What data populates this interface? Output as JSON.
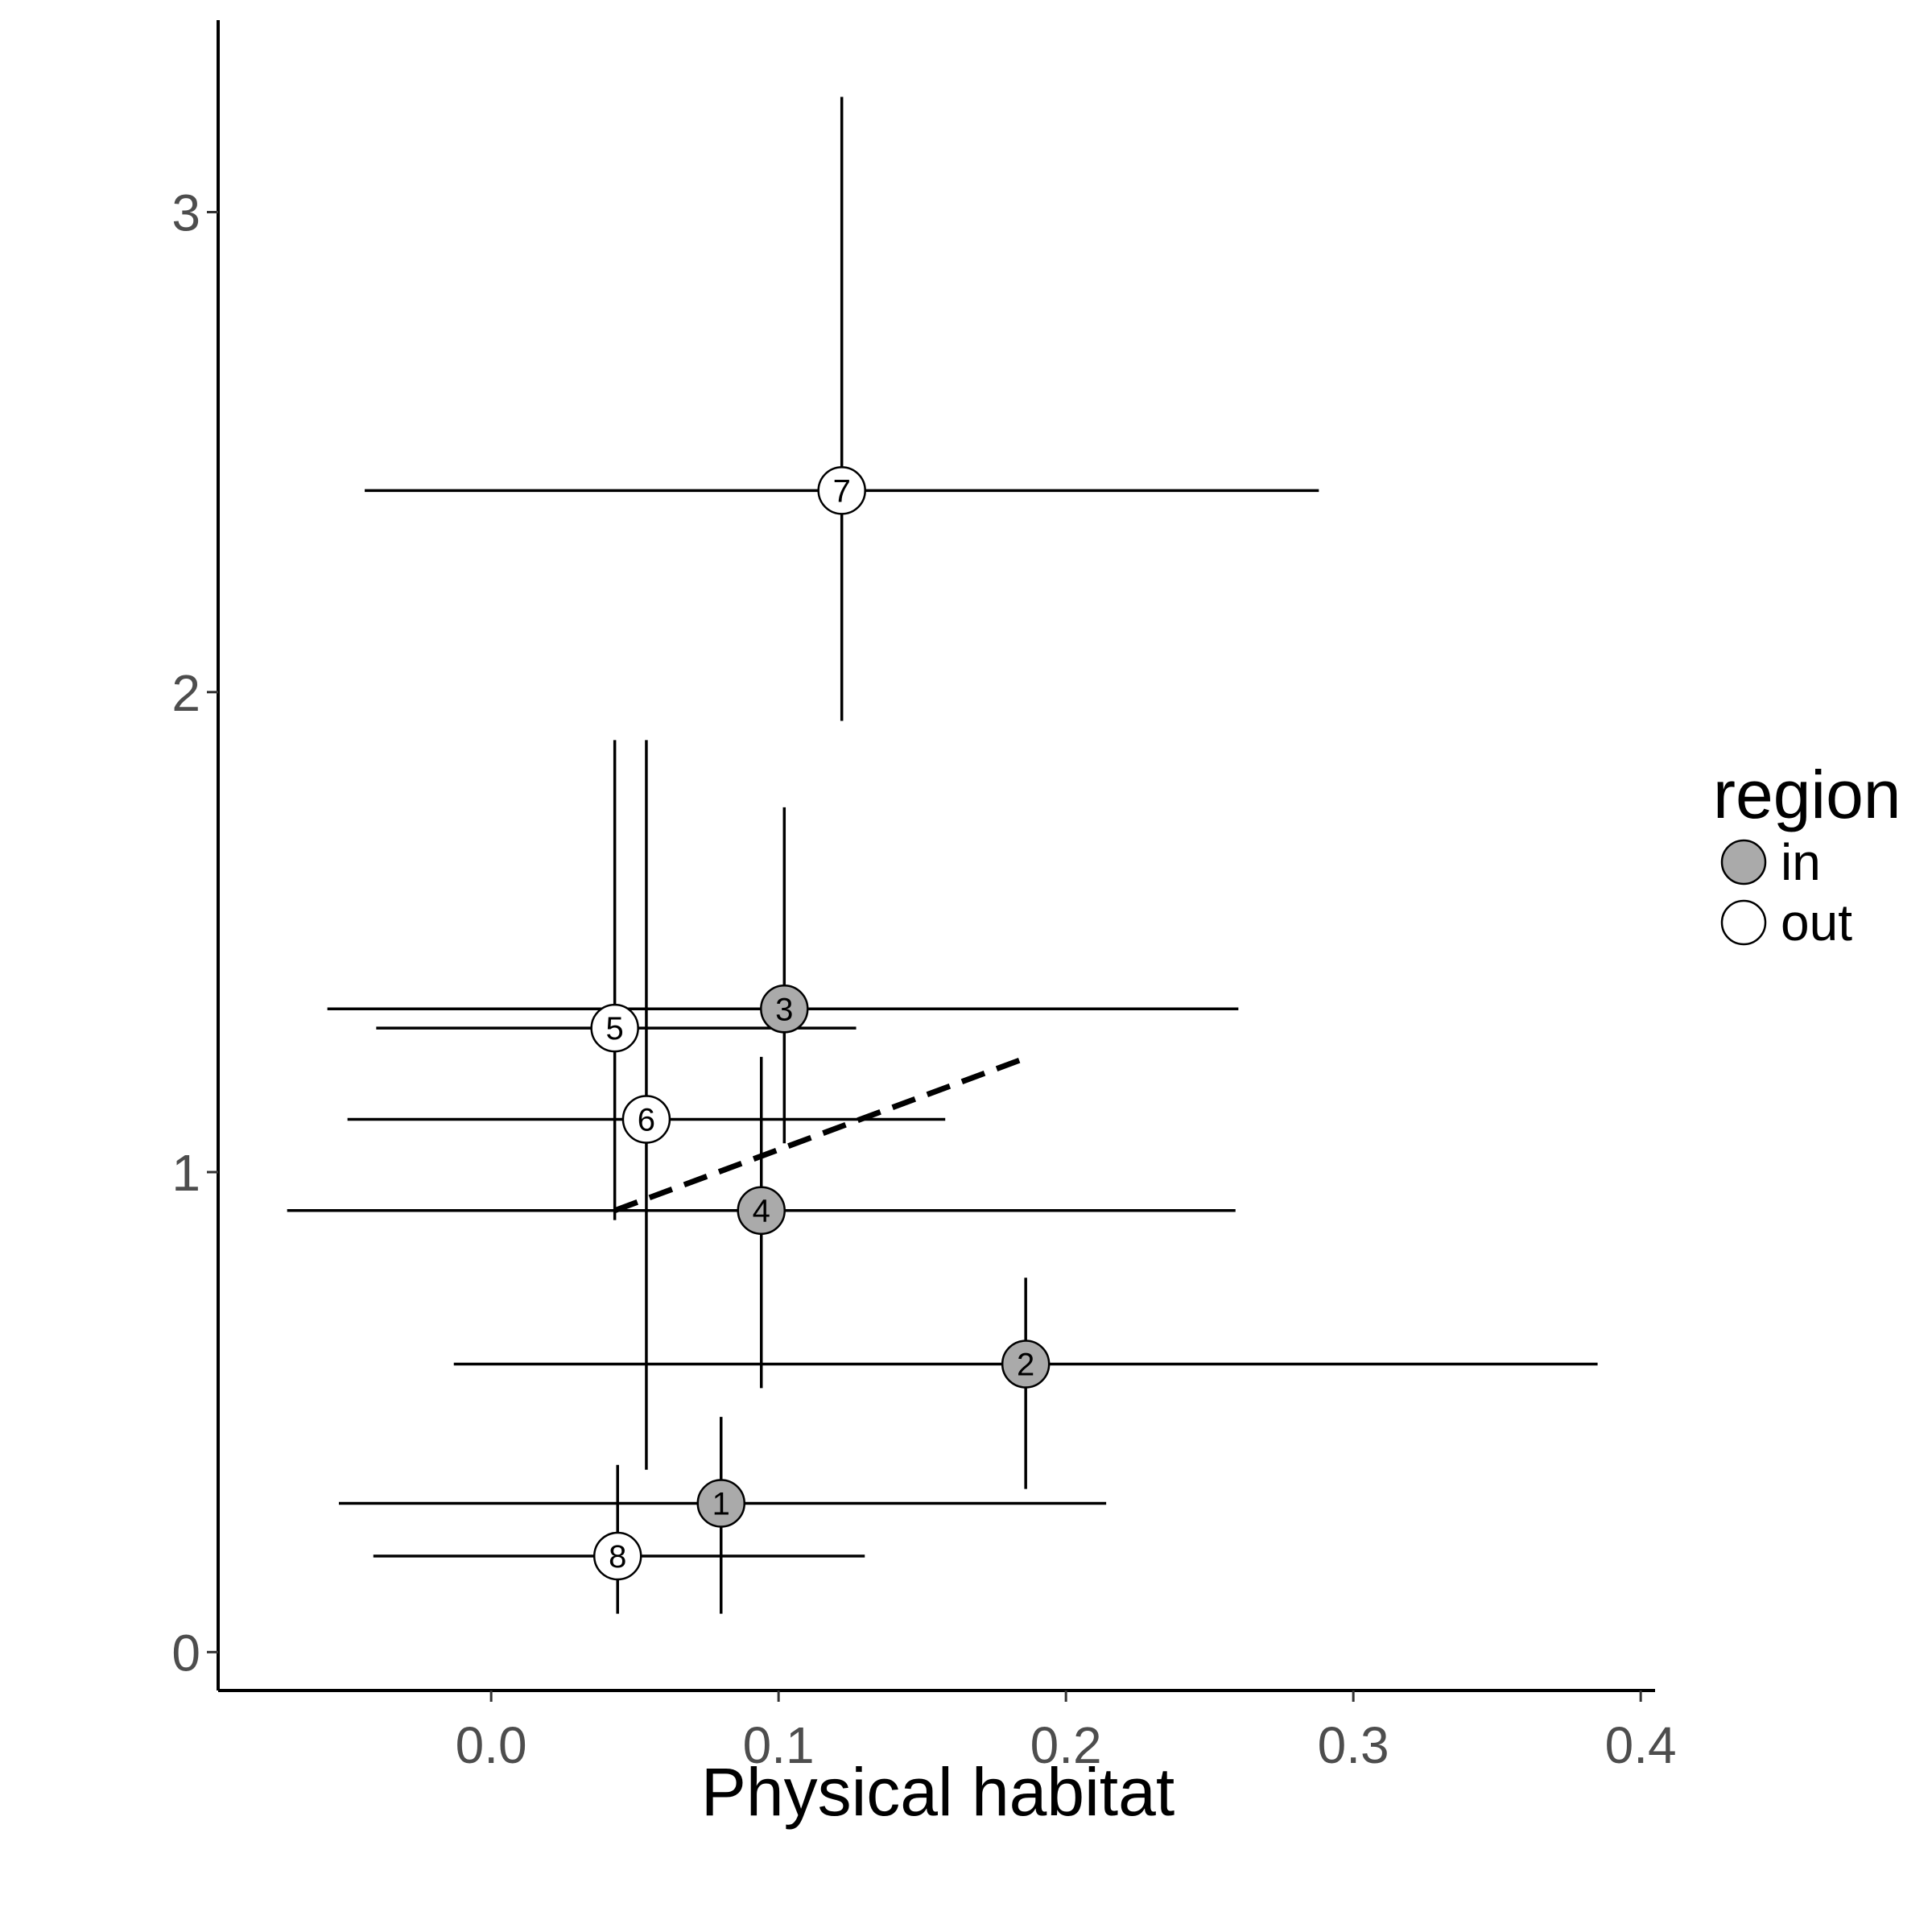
{
  "chart_data": {
    "type": "scatter",
    "xlabel": "Physical habitat",
    "ylabel": "",
    "xlim": [
      -0.095,
      0.405
    ],
    "ylim": [
      -0.08,
      3.4
    ],
    "xticks": [
      0.0,
      0.1,
      0.2,
      0.3,
      0.4
    ],
    "xtick_labels": [
      "0.0",
      "0.1",
      "0.2",
      "0.3",
      "0.4"
    ],
    "yticks": [
      0,
      1,
      2,
      3
    ],
    "ytick_labels": [
      "0",
      "1",
      "2",
      "3"
    ],
    "grid": false,
    "legend": {
      "title": "region",
      "placement": "right",
      "entries": [
        {
          "label": "in",
          "fill": "#aaaaaa"
        },
        {
          "label": "out",
          "fill": "#ffffff"
        }
      ]
    },
    "points": [
      {
        "label": "1",
        "region": "in",
        "x": 0.08,
        "y": 0.31,
        "xmin": -0.053,
        "xmax": 0.214,
        "ymin": 0.08,
        "ymax": 0.49
      },
      {
        "label": "2",
        "region": "in",
        "x": 0.186,
        "y": 0.6,
        "xmin": -0.013,
        "xmax": 0.385,
        "ymin": 0.34,
        "ymax": 0.78
      },
      {
        "label": "3",
        "region": "in",
        "x": 0.102,
        "y": 1.34,
        "xmin": -0.057,
        "xmax": 0.26,
        "ymin": 1.06,
        "ymax": 1.76
      },
      {
        "label": "4",
        "region": "in",
        "x": 0.094,
        "y": 0.92,
        "xmin": -0.071,
        "xmax": 0.259,
        "ymin": 0.55,
        "ymax": 1.24
      },
      {
        "label": "5",
        "region": "out",
        "x": 0.043,
        "y": 1.3,
        "xmin": -0.04,
        "xmax": 0.127,
        "ymin": 0.9,
        "ymax": 1.9
      },
      {
        "label": "6",
        "region": "out",
        "x": 0.054,
        "y": 1.11,
        "xmin": -0.05,
        "xmax": 0.158,
        "ymin": 0.38,
        "ymax": 1.9
      },
      {
        "label": "7",
        "region": "out",
        "x": 0.122,
        "y": 2.42,
        "xmin": -0.044,
        "xmax": 0.288,
        "ymin": 1.94,
        "ymax": 3.24
      },
      {
        "label": "8",
        "region": "out",
        "x": 0.044,
        "y": 0.2,
        "xmin": -0.041,
        "xmax": 0.13,
        "ymin": 0.08,
        "ymax": 0.39
      }
    ],
    "trend_line": {
      "style": "dashed",
      "x": [
        0.043,
        0.187
      ],
      "y": [
        0.92,
        1.24
      ]
    }
  }
}
